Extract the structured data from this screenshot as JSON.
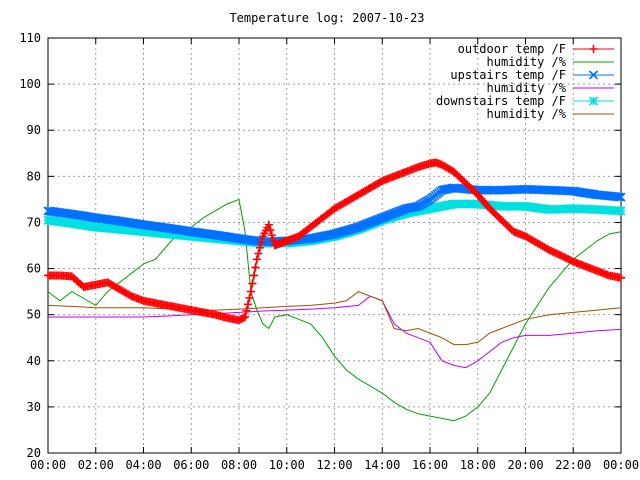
{
  "chart_data": {
    "type": "line",
    "title": "Temperature log: 2007-10-23",
    "xlabel": "",
    "ylabel": "",
    "xlim": [
      0,
      24
    ],
    "ylim": [
      20,
      110
    ],
    "grid": true,
    "legend_position": "top-right",
    "x_ticks": [
      "00:00",
      "02:00",
      "04:00",
      "06:00",
      "08:00",
      "10:00",
      "12:00",
      "14:00",
      "16:00",
      "18:00",
      "20:00",
      "22:00",
      "00:00"
    ],
    "y_ticks": [
      "20",
      "30",
      "40",
      "50",
      "60",
      "70",
      "80",
      "90",
      "100",
      "110"
    ],
    "series": [
      {
        "name": "outdoor temp /F",
        "color": "#ff0000",
        "marker": "plus",
        "x": [
          0,
          0.5,
          1,
          1.5,
          2,
          2.5,
          3,
          3.5,
          4,
          4.5,
          5,
          5.5,
          6,
          6.5,
          7,
          7.5,
          8,
          8.25,
          8.5,
          8.75,
          9,
          9.25,
          9.5,
          9.75,
          10,
          10.5,
          11,
          11.5,
          12,
          12.5,
          13,
          13.5,
          14,
          14.5,
          15,
          15.5,
          16,
          16.25,
          16.5,
          17,
          17.5,
          18,
          18.5,
          19,
          19.5,
          20,
          20.5,
          21,
          21.5,
          22,
          22.5,
          23,
          23.5,
          24
        ],
        "y": [
          58.5,
          58.5,
          58.3,
          56,
          56.5,
          57,
          55.5,
          54,
          53,
          52.5,
          52,
          51.5,
          51,
          50.5,
          50,
          49.3,
          48.8,
          49.5,
          55,
          62,
          67,
          69.5,
          65,
          65.5,
          66,
          67,
          69,
          71,
          73,
          74.5,
          76,
          77.5,
          79,
          80,
          81,
          82,
          82.8,
          83,
          82.5,
          81,
          78.5,
          76,
          73,
          70.5,
          68,
          67,
          65.5,
          64,
          62.8,
          61.5,
          60.5,
          59.5,
          58.5,
          58
        ]
      },
      {
        "name": "humidity /%",
        "color": "#00a000",
        "marker": "none",
        "x": [
          0,
          0.5,
          1,
          1.5,
          2,
          2.5,
          3,
          3.5,
          4,
          4.5,
          5,
          5.5,
          6,
          6.5,
          7,
          7.5,
          8,
          8.25,
          8.5,
          8.75,
          9,
          9.25,
          9.5,
          10,
          10.5,
          11,
          11.5,
          12,
          12.5,
          13,
          13.5,
          14,
          14.5,
          15,
          15.5,
          16,
          16.5,
          17,
          17.5,
          18,
          18.5,
          19,
          19.5,
          20,
          20.5,
          21,
          21.5,
          22,
          22.5,
          23,
          23.5,
          24
        ],
        "y": [
          55,
          53,
          55,
          53.5,
          52,
          55,
          57,
          59,
          61,
          62,
          65,
          68,
          69,
          71,
          72.5,
          74,
          75,
          68,
          55,
          51,
          48,
          47,
          49.5,
          50,
          49,
          48,
          45,
          41,
          38,
          36,
          34.5,
          33,
          31,
          29.5,
          28.5,
          28,
          27.5,
          27,
          28,
          30,
          33,
          38,
          43,
          48,
          52,
          56,
          59,
          62,
          64,
          66,
          67.5,
          68
        ]
      },
      {
        "name": "upstairs temp /F",
        "color": "#0070ff",
        "marker": "cross",
        "x": [
          0,
          1,
          2,
          3,
          4,
          5,
          6,
          7,
          8,
          9,
          10,
          11,
          12,
          13,
          14,
          15,
          15.5,
          16,
          16.5,
          17,
          18,
          19,
          20,
          21,
          22,
          23,
          24
        ],
        "y": [
          72.5,
          71.8,
          71,
          70.3,
          69.5,
          68.8,
          68,
          67.3,
          66.5,
          65.8,
          66,
          66.5,
          67.5,
          69,
          71,
          73,
          73.5,
          75,
          77,
          77.5,
          77,
          77,
          77.2,
          77,
          76.8,
          76,
          75.5
        ]
      },
      {
        "name": "humidity /%",
        "color": "#c000ff",
        "marker": "none",
        "x": [
          0,
          1,
          2,
          3,
          4,
          5,
          6,
          7,
          8,
          9,
          10,
          11,
          12,
          13,
          13.5,
          14,
          14.5,
          15,
          15.5,
          16,
          16.5,
          17,
          17.5,
          18,
          18.5,
          19,
          19.5,
          20,
          21,
          22,
          23,
          24
        ],
        "y": [
          49.5,
          49.5,
          49.5,
          49.5,
          49.5,
          49.7,
          50,
          50.2,
          50.5,
          50.8,
          51,
          51.2,
          51.5,
          52,
          54,
          53,
          48,
          46,
          45,
          44,
          40,
          39,
          38.5,
          40,
          42,
          44,
          45,
          45.5,
          45.5,
          46,
          46.5,
          46.8
        ]
      },
      {
        "name": "downstairs temp /F",
        "color": "#00e0e0",
        "marker": "star",
        "x": [
          0,
          1,
          2,
          3,
          4,
          5,
          6,
          7,
          8,
          9,
          10,
          11,
          12,
          13,
          14,
          15,
          16,
          17,
          18,
          19,
          20,
          21,
          22,
          23,
          24
        ],
        "y": [
          70.5,
          69.8,
          69,
          68.5,
          68,
          67.5,
          67,
          66.5,
          66,
          65.5,
          65.5,
          66,
          67,
          68.5,
          70.5,
          72,
          73,
          74,
          74,
          73.5,
          73.5,
          72.8,
          73,
          72.8,
          72.5
        ]
      },
      {
        "name": "humidity /%",
        "color": "#a05000",
        "marker": "none",
        "x": [
          0,
          1,
          2,
          3,
          4,
          5,
          6,
          7,
          8,
          9,
          10,
          11,
          12,
          12.5,
          13,
          13.5,
          14,
          14.5,
          15,
          15.5,
          16,
          16.5,
          17,
          17.5,
          18,
          18.5,
          19,
          20,
          21,
          22,
          23,
          24
        ],
        "y": [
          52,
          51.8,
          51.5,
          51.5,
          51.5,
          51.3,
          51,
          51,
          51.2,
          51.5,
          51.8,
          52,
          52.5,
          53,
          55,
          54,
          53,
          47,
          46.5,
          47,
          46,
          45,
          43.5,
          43.5,
          44,
          46,
          47,
          49,
          50,
          50.5,
          51,
          51.5
        ]
      }
    ]
  }
}
